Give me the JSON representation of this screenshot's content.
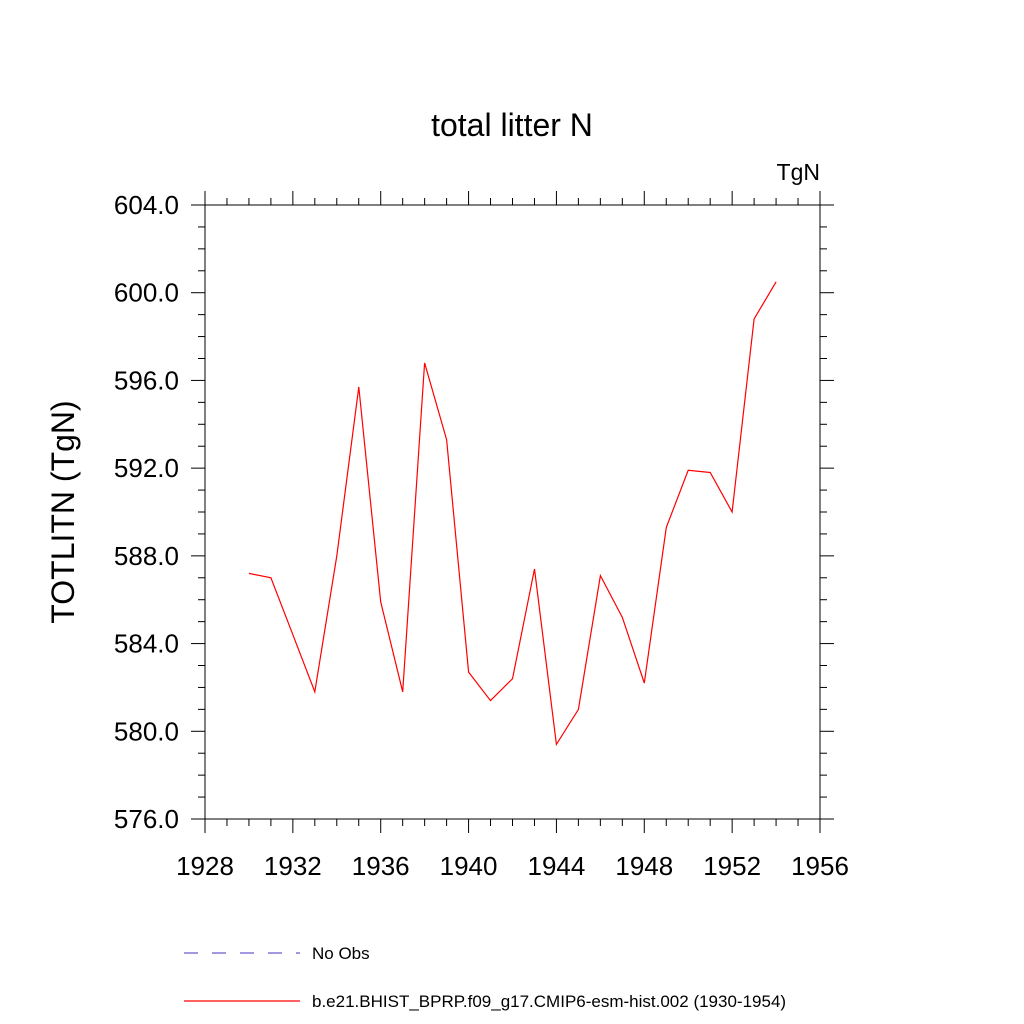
{
  "chart_data": {
    "type": "line",
    "title": "total litter N",
    "units_label": "TgN",
    "ylabel": "TOTLITN  (TgN)",
    "xlabel": "",
    "xlim": [
      1928,
      1956
    ],
    "ylim": [
      576,
      604
    ],
    "x_ticks": [
      1928,
      1932,
      1936,
      1940,
      1944,
      1948,
      1952,
      1956
    ],
    "x_tick_labels": [
      "1928",
      "1932",
      "1936",
      "1940",
      "1944",
      "1948",
      "1952",
      "1956"
    ],
    "y_ticks": [
      576,
      580,
      584,
      588,
      592,
      596,
      600,
      604
    ],
    "y_tick_labels": [
      "576.0",
      "580.0",
      "584.0",
      "588.0",
      "592.0",
      "596.0",
      "600.0",
      "604.0"
    ],
    "grid": false,
    "legend_position": "bottom",
    "series": [
      {
        "name": "No Obs",
        "color": "#6a5acd",
        "dash": "dashed",
        "x": [],
        "values": []
      },
      {
        "name": "b.e21.BHIST_BPRP.f09_g17.CMIP6-esm-hist.002 (1930-1954)",
        "color": "#ff0000",
        "dash": "solid",
        "x": [
          1930,
          1931,
          1932,
          1933,
          1934,
          1935,
          1936,
          1937,
          1938,
          1939,
          1940,
          1941,
          1942,
          1943,
          1944,
          1945,
          1946,
          1947,
          1948,
          1949,
          1950,
          1951,
          1952,
          1953,
          1954
        ],
        "values": [
          587.2,
          587.0,
          584.4,
          581.8,
          588.0,
          595.7,
          585.9,
          581.8,
          596.8,
          593.3,
          582.7,
          581.4,
          582.4,
          587.4,
          579.4,
          581.0,
          587.1,
          585.2,
          582.2,
          589.3,
          591.9,
          591.8,
          590.0,
          598.8,
          600.5
        ]
      }
    ]
  }
}
